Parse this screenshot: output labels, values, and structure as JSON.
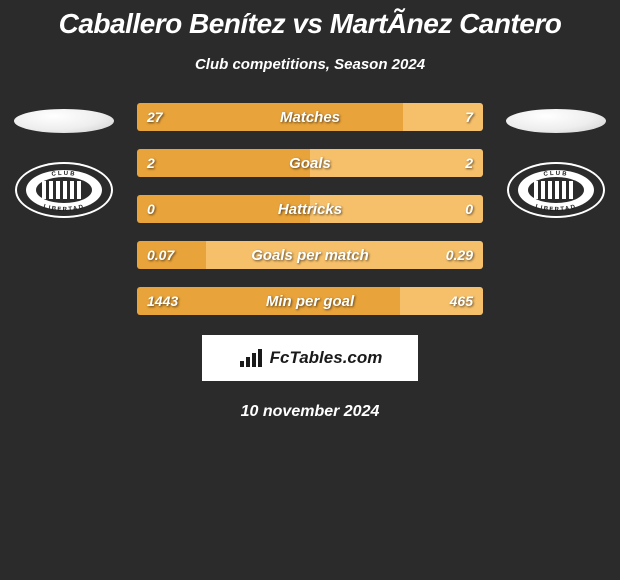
{
  "title": "Caballero Benítez vs MartÃnez Cantero",
  "subtitle": "Club competitions, Season 2024",
  "date": "10 november 2024",
  "brand": "FcTables.com",
  "colors": {
    "left": "#e8a33a",
    "right": "#f6c06a",
    "background": "#2b2b2b"
  },
  "badge_text": {
    "top": "CLUB",
    "bottom": "LIBERTAD"
  },
  "stats": [
    {
      "label": "Matches",
      "left_val": "27",
      "right_val": "7",
      "left_pct": 77,
      "right_pct": 23
    },
    {
      "label": "Goals",
      "left_val": "2",
      "right_val": "2",
      "left_pct": 50,
      "right_pct": 50
    },
    {
      "label": "Hattricks",
      "left_val": "0",
      "right_val": "0",
      "left_pct": 50,
      "right_pct": 50
    },
    {
      "label": "Goals per match",
      "left_val": "0.07",
      "right_val": "0.29",
      "left_pct": 20,
      "right_pct": 80
    },
    {
      "label": "Min per goal",
      "left_val": "1443",
      "right_val": "465",
      "left_pct": 76,
      "right_pct": 24
    }
  ]
}
